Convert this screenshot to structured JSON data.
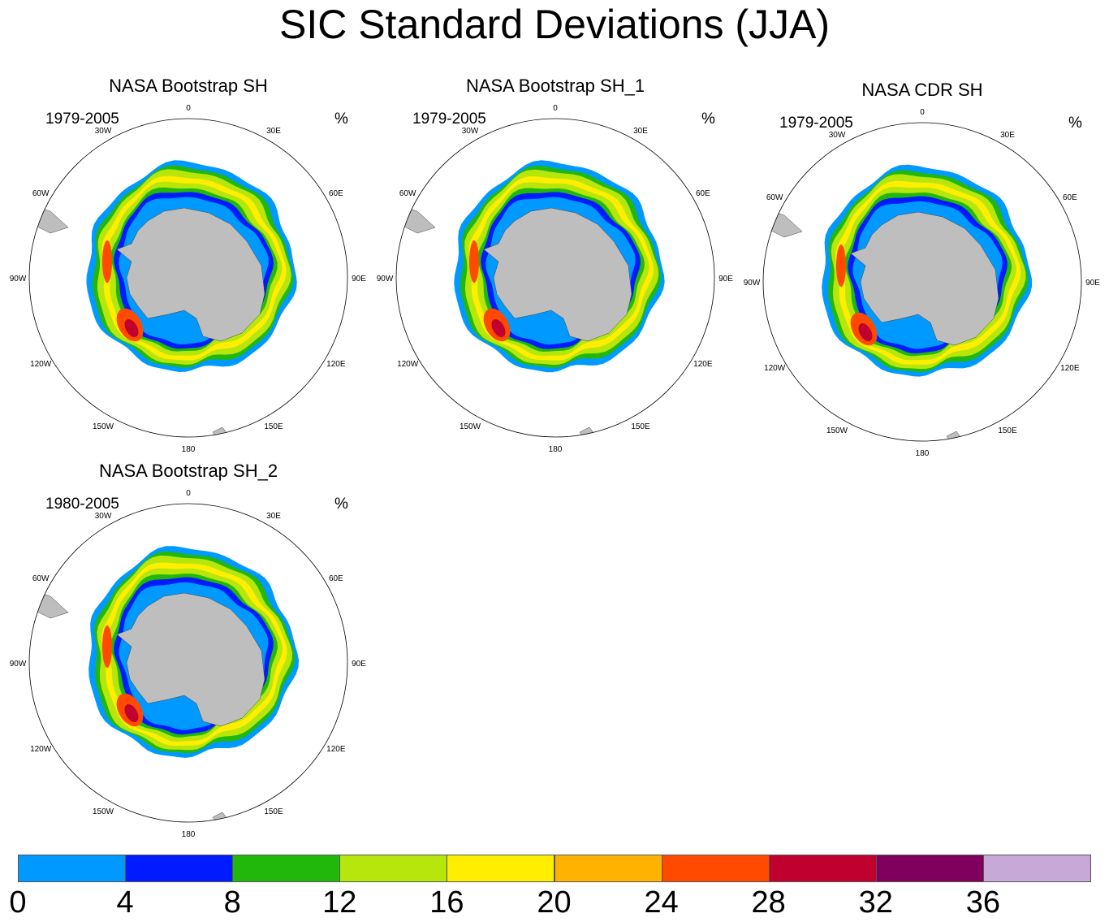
{
  "title": "SIC Standard Deviations (JJA)",
  "panels": [
    {
      "title": "NASA Bootstrap SH",
      "years": "1979-2005",
      "unit": "%"
    },
    {
      "title": "NASA Bootstrap SH_1",
      "years": "1979-2005",
      "unit": "%"
    },
    {
      "title": "NASA CDR SH",
      "years": "1979-2005",
      "unit": "%"
    },
    {
      "title": "NASA Bootstrap SH_2",
      "years": "1980-2005",
      "unit": "%"
    }
  ],
  "longitude_labels": [
    "0",
    "30E",
    "60E",
    "90E",
    "120E",
    "150E",
    "180",
    "150W",
    "120W",
    "90W",
    "60W",
    "30W"
  ],
  "colorbar": {
    "colors": [
      "#0099ff",
      "#001bff",
      "#22b80b",
      "#b7e60d",
      "#ffee00",
      "#ffb300",
      "#ff4a00",
      "#c0002e",
      "#80005e",
      "#c8a8d6"
    ],
    "labels": [
      "0",
      "4",
      "8",
      "12",
      "16",
      "20",
      "24",
      "28",
      "32",
      "36"
    ]
  },
  "land_color": "#bebebe"
}
